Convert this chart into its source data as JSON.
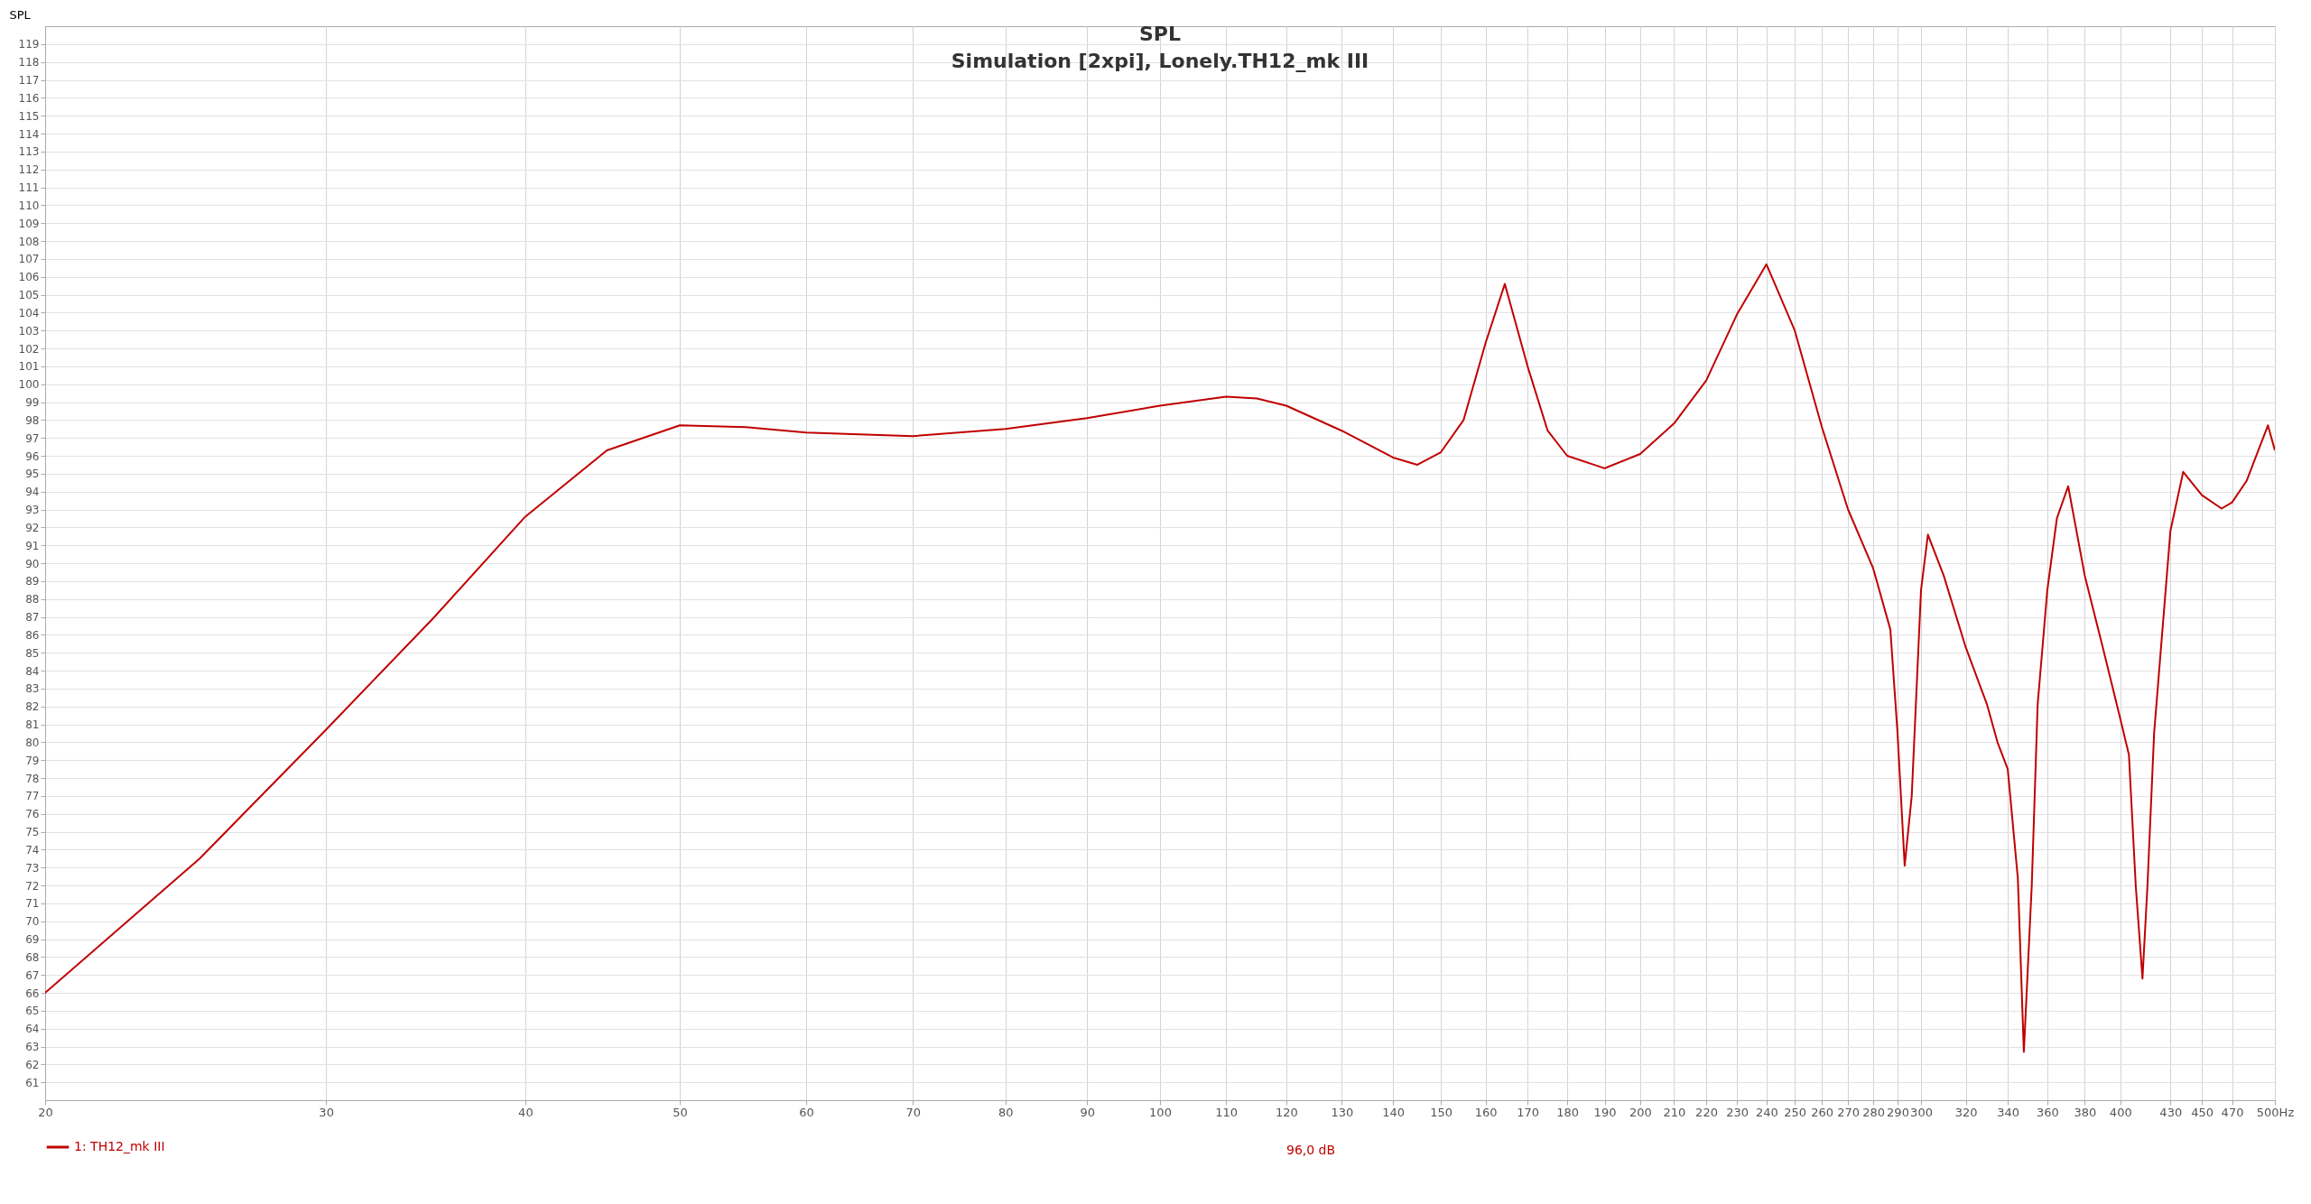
{
  "chart_data": {
    "type": "line",
    "title": "SPL",
    "subtitle": "Simulation [2xpi], Lonely.TH12_mk III",
    "ylabel": "SPL",
    "x": [
      20,
      25,
      30,
      35,
      40,
      45,
      50,
      55,
      60,
      70,
      80,
      90,
      100,
      110,
      115,
      120,
      130,
      140,
      145,
      150,
      155,
      160,
      164.5,
      170,
      175,
      180,
      190,
      200,
      210,
      220,
      230,
      240,
      250,
      260,
      270,
      280,
      287,
      290,
      293,
      296,
      300,
      303,
      310,
      320,
      330,
      335,
      340,
      345,
      348,
      352,
      355,
      360,
      365,
      371,
      380,
      390,
      400,
      405,
      409,
      413,
      416,
      420,
      430,
      438,
      450,
      463,
      470,
      480,
      495,
      500
    ],
    "series": [
      {
        "name": "1: TH12_mk III",
        "color": "#c00000",
        "values": [
          66,
          73.5,
          80.7,
          86.9,
          92.6,
          96.3,
          97.7,
          97.6,
          97.3,
          97.1,
          97.5,
          98.1,
          98.8,
          99.3,
          99.2,
          98.8,
          97.4,
          95.9,
          95.5,
          96.2,
          98,
          102.3,
          105.6,
          101,
          97.4,
          96,
          95.3,
          96.1,
          97.8,
          100.2,
          103.9,
          106.7,
          103,
          97.6,
          93,
          89.7,
          86.3,
          80.5,
          73.1,
          77,
          88.5,
          91.6,
          89.3,
          85.3,
          82.1,
          80,
          78.5,
          72.4,
          62.7,
          72,
          82.1,
          88.5,
          92.5,
          94.3,
          89.3,
          85.3,
          81.3,
          79.3,
          72,
          66.8,
          72,
          80.5,
          91.8,
          95.1,
          93.8,
          93.05,
          93.4,
          94.6,
          97.7,
          96.3
        ]
      }
    ],
    "xlim": [
      20,
      500
    ],
    "xticks": [
      20,
      30,
      40,
      50,
      60,
      70,
      80,
      90,
      100,
      110,
      120,
      130,
      140,
      150,
      160,
      170,
      180,
      190,
      200,
      210,
      220,
      230,
      240,
      250,
      260,
      270,
      280,
      290,
      300,
      320,
      340,
      360,
      380,
      400,
      430,
      450,
      470,
      {
        "value": 500,
        "label": "500Hz"
      }
    ],
    "ylim": [
      60,
      120
    ],
    "yticks": [
      61,
      62,
      63,
      64,
      65,
      66,
      67,
      68,
      69,
      70,
      71,
      72,
      73,
      74,
      75,
      76,
      77,
      78,
      79,
      80,
      81,
      82,
      83,
      84,
      85,
      86,
      87,
      88,
      89,
      90,
      91,
      92,
      93,
      94,
      95,
      96,
      97,
      98,
      99,
      100,
      101,
      102,
      103,
      104,
      105,
      106,
      107,
      108,
      109,
      110,
      111,
      112,
      113,
      114,
      115,
      116,
      117,
      118,
      119
    ],
    "log": "x",
    "grid": true,
    "legend": "bottom",
    "line_style": "solid",
    "marker": "none",
    "annotations": [
      "96,0 dB"
    ]
  }
}
